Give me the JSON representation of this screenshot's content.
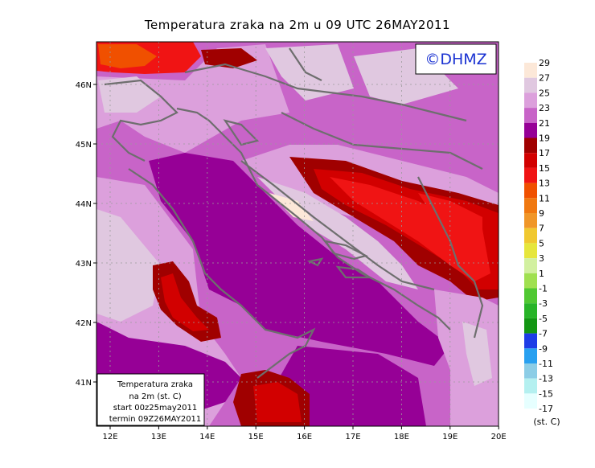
{
  "title": "Temperatura zraka na 2m u 09 UTC 26MAY2011",
  "brand": "©DHMZ",
  "lat_labels": [
    "46N",
    "45N",
    "44N",
    "43N",
    "42N",
    "41N"
  ],
  "lon_labels": [
    "12E",
    "13E",
    "14E",
    "15E",
    "16E",
    "17E",
    "18E",
    "19E",
    "20E"
  ],
  "info_box": {
    "line1": "Temperatura zraka",
    "line2": "na 2m (st. C)",
    "line3": "start 00z25may2011",
    "line4": "termin 09Z26MAY2011"
  },
  "legend": {
    "unit": "(st. C)",
    "labels": [
      "29",
      "27",
      "25",
      "23",
      "21",
      "19",
      "17",
      "15",
      "13",
      "11",
      "9",
      "7",
      "5",
      "3",
      "1",
      "-1",
      "-3",
      "-5",
      "-7",
      "-9",
      "-11",
      "-13",
      "-15",
      "-17"
    ],
    "colors": [
      "#fce8d8",
      "#e0c8e0",
      "#dca0dc",
      "#c864c8",
      "#960096",
      "#a00000",
      "#d20000",
      "#f01414",
      "#f05000",
      "#f07810",
      "#f09628",
      "#f0c830",
      "#e6e63c",
      "#d2f0a0",
      "#a0e050",
      "#50c832",
      "#28b428",
      "#139613",
      "#1e3ce6",
      "#28a0f0",
      "#8ccde6",
      "#b4f0f0",
      "#e6ffff"
    ]
  },
  "field_colors": {
    "sea_warm": "#960096",
    "land_23": "#c864c8",
    "land_25": "#dca0dc",
    "land_27": "#e0c8e0",
    "land_29": "#fce8d8",
    "hot_19": "#a00000",
    "hot_17": "#d20000",
    "hot_15": "#f01414",
    "cool_13": "#f05000"
  }
}
